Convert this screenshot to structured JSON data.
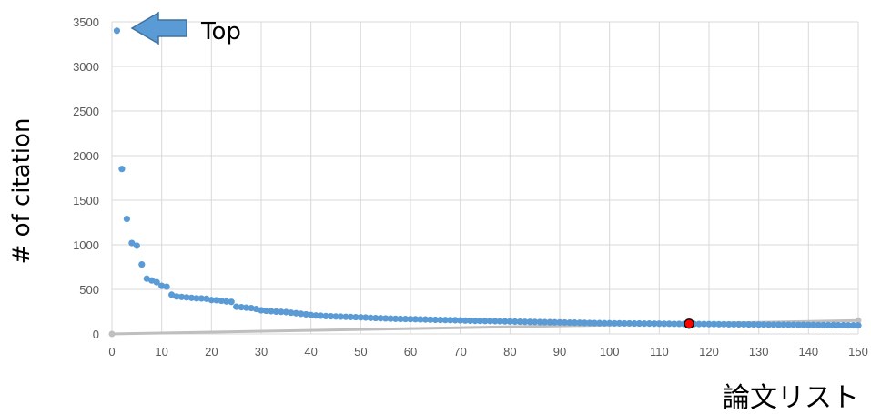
{
  "chart_data": {
    "type": "scatter",
    "title": "",
    "xlabel": "論文リスト",
    "ylabel": "# of citation",
    "xlim": [
      0,
      150
    ],
    "ylim": [
      0,
      3500
    ],
    "xticks": [
      0,
      10,
      20,
      30,
      40,
      50,
      60,
      70,
      80,
      90,
      100,
      110,
      120,
      130,
      140,
      150
    ],
    "yticks": [
      0,
      500,
      1000,
      1500,
      2000,
      2500,
      3000,
      3500
    ],
    "grid": true,
    "legend": "none",
    "annotations": [
      {
        "text": "Top",
        "points_to": [
          1,
          3400
        ]
      }
    ],
    "highlight": {
      "x": 116,
      "y": 115,
      "color": "#ff0000"
    },
    "trendline": {
      "from": [
        0,
        0
      ],
      "to": [
        150,
        150
      ],
      "color": "#bfbfbf"
    },
    "colors": {
      "series": "#5b9bd5",
      "grid": "#d9d9d9",
      "arrow": "#5b9bd5",
      "arrow_edge": "#41719c"
    },
    "series": [
      {
        "values": [
          [
            1,
            3400
          ],
          [
            2,
            1850
          ],
          [
            3,
            1290
          ],
          [
            4,
            1020
          ],
          [
            5,
            990
          ],
          [
            6,
            780
          ],
          [
            7,
            620
          ],
          [
            8,
            600
          ],
          [
            9,
            580
          ],
          [
            10,
            540
          ],
          [
            11,
            530
          ],
          [
            12,
            440
          ],
          [
            13,
            420
          ],
          [
            14,
            415
          ],
          [
            15,
            410
          ],
          [
            16,
            405
          ],
          [
            17,
            400
          ],
          [
            18,
            398
          ],
          [
            19,
            395
          ],
          [
            20,
            380
          ],
          [
            21,
            378
          ],
          [
            22,
            372
          ],
          [
            23,
            365
          ],
          [
            24,
            360
          ],
          [
            25,
            305
          ],
          [
            26,
            300
          ],
          [
            27,
            295
          ],
          [
            28,
            290
          ],
          [
            29,
            280
          ],
          [
            30,
            265
          ],
          [
            31,
            260
          ],
          [
            32,
            255
          ],
          [
            33,
            250
          ],
          [
            34,
            248
          ],
          [
            35,
            245
          ],
          [
            36,
            238
          ],
          [
            37,
            232
          ],
          [
            38,
            226
          ],
          [
            39,
            220
          ],
          [
            40,
            212
          ],
          [
            41,
            207
          ],
          [
            42,
            204
          ],
          [
            43,
            200
          ],
          [
            44,
            198
          ],
          [
            45,
            196
          ],
          [
            46,
            194
          ],
          [
            47,
            192
          ],
          [
            48,
            190
          ],
          [
            49,
            188
          ],
          [
            50,
            186
          ],
          [
            51,
            184
          ],
          [
            52,
            180
          ],
          [
            53,
            178
          ],
          [
            54,
            176
          ],
          [
            55,
            174
          ],
          [
            56,
            172
          ],
          [
            57,
            170
          ],
          [
            58,
            168
          ],
          [
            59,
            167
          ],
          [
            60,
            166
          ],
          [
            61,
            165
          ],
          [
            62,
            163
          ],
          [
            63,
            162
          ],
          [
            64,
            160
          ],
          [
            65,
            158
          ],
          [
            66,
            157
          ],
          [
            67,
            156
          ],
          [
            68,
            155
          ],
          [
            69,
            154
          ],
          [
            70,
            152
          ],
          [
            71,
            150
          ],
          [
            72,
            148
          ],
          [
            73,
            147
          ],
          [
            74,
            146
          ],
          [
            75,
            145
          ],
          [
            76,
            144
          ],
          [
            77,
            143
          ],
          [
            78,
            142
          ],
          [
            79,
            141
          ],
          [
            80,
            140
          ],
          [
            81,
            138
          ],
          [
            82,
            137
          ],
          [
            83,
            136
          ],
          [
            84,
            135
          ],
          [
            85,
            134
          ],
          [
            86,
            133
          ],
          [
            87,
            132
          ],
          [
            88,
            131
          ],
          [
            89,
            130
          ],
          [
            90,
            129
          ],
          [
            91,
            128
          ],
          [
            92,
            127
          ],
          [
            93,
            126
          ],
          [
            94,
            125
          ],
          [
            95,
            124
          ],
          [
            96,
            123
          ],
          [
            97,
            122
          ],
          [
            98,
            121
          ],
          [
            99,
            120
          ],
          [
            100,
            120
          ],
          [
            101,
            119
          ],
          [
            102,
            119
          ],
          [
            103,
            118
          ],
          [
            104,
            118
          ],
          [
            105,
            117
          ],
          [
            106,
            117
          ],
          [
            107,
            116
          ],
          [
            108,
            116
          ],
          [
            109,
            115
          ],
          [
            110,
            115
          ],
          [
            111,
            114
          ],
          [
            112,
            114
          ],
          [
            113,
            113
          ],
          [
            114,
            113
          ],
          [
            115,
            112
          ],
          [
            117,
            112
          ],
          [
            118,
            111
          ],
          [
            119,
            111
          ],
          [
            120,
            110
          ],
          [
            121,
            110
          ],
          [
            122,
            109
          ],
          [
            123,
            109
          ],
          [
            124,
            108
          ],
          [
            125,
            108
          ],
          [
            126,
            107
          ],
          [
            127,
            107
          ],
          [
            128,
            106
          ],
          [
            129,
            106
          ],
          [
            130,
            105
          ],
          [
            131,
            105
          ],
          [
            132,
            104
          ],
          [
            133,
            104
          ],
          [
            134,
            103
          ],
          [
            135,
            103
          ],
          [
            136,
            102
          ],
          [
            137,
            102
          ],
          [
            138,
            101
          ],
          [
            139,
            101
          ],
          [
            140,
            100
          ],
          [
            141,
            100
          ],
          [
            142,
            99
          ],
          [
            143,
            99
          ],
          [
            144,
            98
          ],
          [
            145,
            98
          ],
          [
            146,
            97
          ],
          [
            147,
            97
          ],
          [
            148,
            96
          ],
          [
            149,
            96
          ],
          [
            150,
            95
          ]
        ]
      }
    ]
  }
}
